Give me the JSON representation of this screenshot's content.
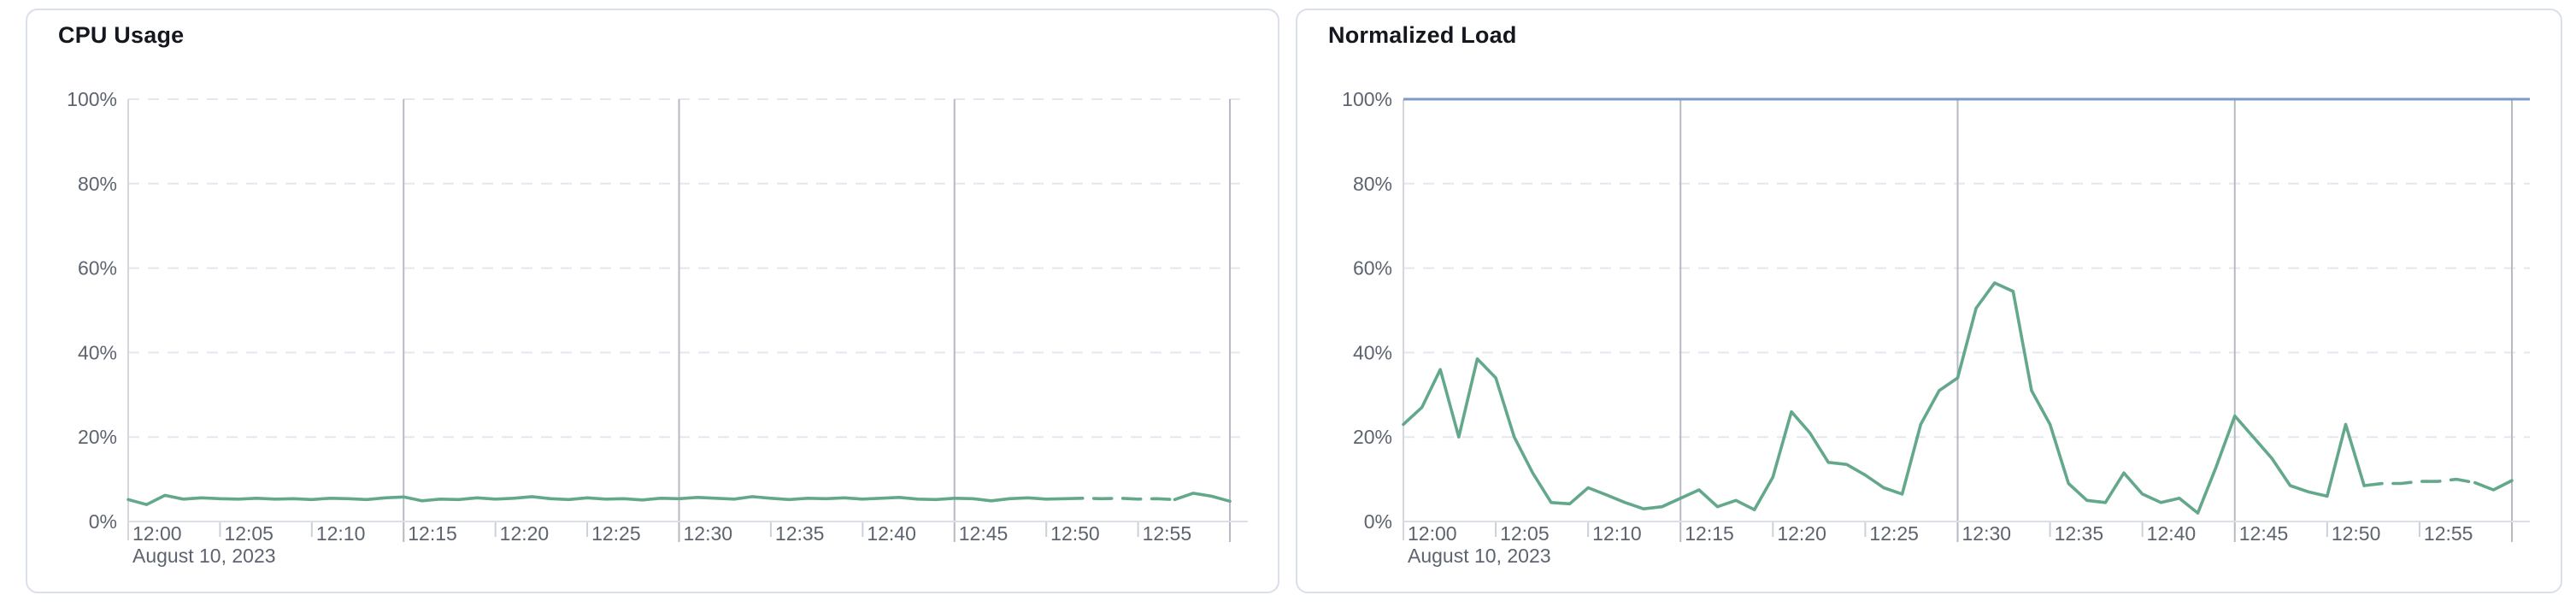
{
  "colors": {
    "series_green": "#64a88b",
    "limit_blue": "#7d9bc6",
    "grid_dashed": "#e4e7f0",
    "grid_vertical": "#b7bac2",
    "axis_line": "#dcdfe6",
    "tick_mark": "#ccd0d8",
    "label_text": "#5d6470",
    "title_text": "#14181e",
    "card_border": "#dadfec"
  },
  "chart_data": [
    {
      "type": "line",
      "title": "CPU Usage",
      "x_start": "12:00",
      "x_end": "13:00",
      "x_interval_minutes": 1,
      "x_tick_labels": [
        "12:00",
        "12:05",
        "12:10",
        "12:15",
        "12:20",
        "12:25",
        "12:30",
        "12:35",
        "12:40",
        "12:45",
        "12:50",
        "12:55"
      ],
      "x_date_label": "August 10, 2023",
      "y_tick_labels": [
        "0%",
        "20%",
        "40%",
        "60%",
        "80%",
        "100%"
      ],
      "y_tick_values": [
        0,
        20,
        40,
        60,
        80,
        100
      ],
      "ylim": [
        0,
        100
      ],
      "grid": "horizontal-dashed, vertical every 15 min",
      "legend": "none",
      "series": [
        {
          "name": "cpu-usage",
          "color": "#64a88b",
          "dashed_segment_indices": [
            51,
            57
          ],
          "values": [
            5.2,
            4.0,
            6.2,
            5.3,
            5.6,
            5.4,
            5.3,
            5.5,
            5.3,
            5.4,
            5.2,
            5.5,
            5.4,
            5.2,
            5.6,
            5.8,
            4.9,
            5.3,
            5.2,
            5.6,
            5.3,
            5.5,
            5.9,
            5.4,
            5.2,
            5.6,
            5.3,
            5.4,
            5.1,
            5.5,
            5.4,
            5.7,
            5.5,
            5.3,
            5.9,
            5.5,
            5.2,
            5.5,
            5.4,
            5.6,
            5.3,
            5.5,
            5.7,
            5.3,
            5.2,
            5.5,
            5.4,
            4.9,
            5.4,
            5.6,
            5.3,
            5.4,
            5.5,
            5.4,
            5.5,
            5.3,
            5.4,
            5.2,
            6.7,
            6.0,
            4.8
          ]
        }
      ],
      "limit_line": null
    },
    {
      "type": "line",
      "title": "Normalized Load",
      "x_start": "12:00",
      "x_end": "13:00",
      "x_interval_minutes": 1,
      "x_tick_labels": [
        "12:00",
        "12:05",
        "12:10",
        "12:15",
        "12:20",
        "12:25",
        "12:30",
        "12:35",
        "12:40",
        "12:45",
        "12:50",
        "12:55"
      ],
      "x_date_label": "August 10, 2023",
      "y_tick_labels": [
        "0%",
        "20%",
        "40%",
        "60%",
        "80%",
        "100%"
      ],
      "y_tick_values": [
        0,
        20,
        40,
        60,
        80,
        100
      ],
      "ylim": [
        0,
        100
      ],
      "grid": "horizontal-dashed, vertical every 15 min",
      "legend": "none",
      "series": [
        {
          "name": "normalized-load",
          "color": "#64a88b",
          "dashed_segment_indices": [
            52,
            58
          ],
          "values": [
            23,
            27,
            36,
            20,
            38.5,
            34,
            20,
            11.5,
            4.5,
            4.2,
            8,
            6.3,
            4.5,
            3,
            3.5,
            5.5,
            7.5,
            3.5,
            5,
            2.8,
            10.5,
            26,
            21,
            14,
            13.5,
            11,
            8,
            6.5,
            23,
            31,
            34,
            50.5,
            56.5,
            54.5,
            31,
            23,
            9,
            5,
            4.5,
            11.5,
            6.5,
            4.5,
            5.5,
            2,
            13,
            25,
            20,
            15,
            8.5,
            7,
            6,
            23,
            8.5,
            9,
            9,
            9.5,
            9.5,
            10,
            9.2,
            7.5,
            9.7
          ]
        }
      ],
      "limit_line": {
        "value": 100,
        "color": "#7d9bc6"
      }
    }
  ]
}
